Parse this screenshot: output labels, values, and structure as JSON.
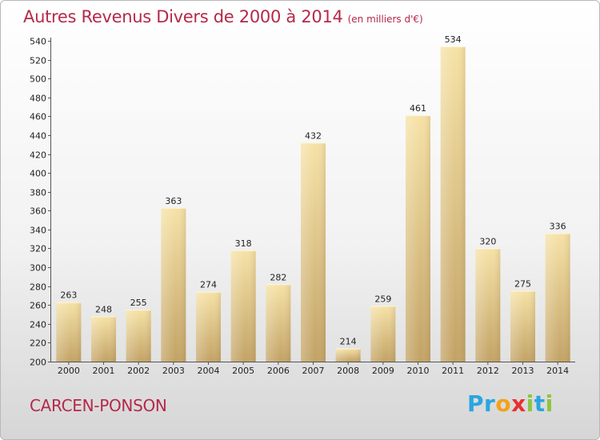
{
  "title": {
    "main": "Autres Revenus Divers de 2000 à 2014",
    "unit": "(en milliers d'€)"
  },
  "location": "CARCEN-PONSON",
  "logo": {
    "letters": [
      "P",
      "r",
      "o",
      "x",
      "i",
      "t",
      "i"
    ],
    "colors": [
      "#2aa6df",
      "#2aa6df",
      "#f2a21a",
      "#e83030",
      "#8cc63f",
      "#2aa6df",
      "#8cc63f"
    ]
  },
  "colors": {
    "title": "#b5294a",
    "bar_light": "#f6e2a6",
    "bar_dark": "#c2a264"
  },
  "chart_data": {
    "type": "bar",
    "categories": [
      "2000",
      "2001",
      "2002",
      "2003",
      "2004",
      "2005",
      "2006",
      "2007",
      "2008",
      "2009",
      "2010",
      "2011",
      "2012",
      "2013",
      "2014"
    ],
    "values": [
      263,
      248,
      255,
      363,
      274,
      318,
      282,
      432,
      214,
      259,
      461,
      534,
      320,
      275,
      336
    ],
    "ylim": [
      200,
      540
    ],
    "yticks": [
      200,
      220,
      240,
      260,
      280,
      300,
      320,
      340,
      360,
      380,
      400,
      420,
      440,
      460,
      480,
      500,
      520,
      540
    ],
    "grid": false,
    "legend": "none"
  }
}
